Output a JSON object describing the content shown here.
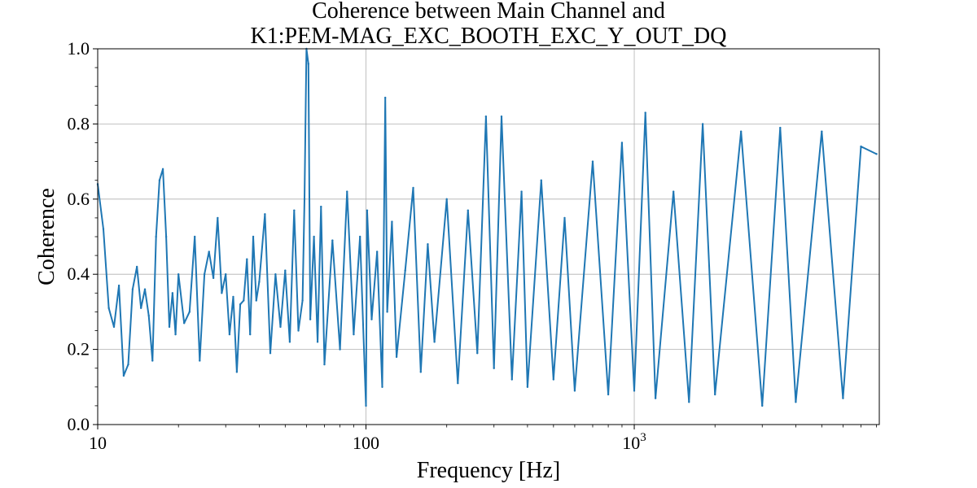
{
  "chart_data": {
    "type": "line",
    "title_line1": "Coherence between Main Channel and",
    "title_line2": "K1:PEM-MAG_EXC_BOOTH_EXC_Y_OUT_DQ",
    "xlabel": "Frequency [Hz]",
    "ylabel": "Coherence",
    "x_scale": "log",
    "xlim": [
      10,
      8192
    ],
    "ylim": [
      0.0,
      1.0
    ],
    "grid": true,
    "line_color": "#1f77b4",
    "x_ticks": [
      {
        "value": 10,
        "base": "10",
        "sup": ""
      },
      {
        "value": 100,
        "base": "100",
        "sup": ""
      },
      {
        "value": 1000,
        "base": "10",
        "sup": "3"
      }
    ],
    "y_ticks": [
      {
        "value": 0.0,
        "label": "0.0"
      },
      {
        "value": 0.2,
        "label": "0.2"
      },
      {
        "value": 0.4,
        "label": "0.4"
      },
      {
        "value": 0.6,
        "label": "0.6"
      },
      {
        "value": 0.8,
        "label": "0.8"
      },
      {
        "value": 1.0,
        "label": "1.0"
      }
    ],
    "series": [
      {
        "x": [
          10,
          10.5,
          11,
          11.5,
          12,
          12.5,
          13,
          13.5,
          14,
          14.5,
          15,
          15.5,
          16,
          16.5,
          17,
          17.5,
          18,
          18.5,
          19,
          19.5,
          20,
          21,
          22,
          23,
          24,
          25,
          26,
          27,
          28,
          29,
          30,
          31,
          32,
          33,
          34,
          35,
          36,
          37,
          38,
          39,
          40,
          42,
          44,
          46,
          48,
          50,
          52,
          54,
          56,
          58,
          59,
          60,
          61,
          62,
          64,
          66,
          68,
          70,
          75,
          80,
          85,
          90,
          95,
          100,
          101,
          105,
          110,
          115,
          118,
          120,
          125,
          130,
          140,
          150,
          160,
          170,
          180,
          200,
          220,
          240,
          260,
          280,
          300,
          320,
          350,
          380,
          400,
          450,
          500,
          550,
          600,
          700,
          800,
          900,
          1000,
          1100,
          1200,
          1400,
          1600,
          1800,
          2000,
          2500,
          3000,
          3500,
          4000,
          5000,
          6000,
          7000,
          8000
        ],
        "y": [
          0.64,
          0.52,
          0.31,
          0.26,
          0.37,
          0.13,
          0.16,
          0.36,
          0.42,
          0.31,
          0.36,
          0.29,
          0.17,
          0.5,
          0.65,
          0.68,
          0.5,
          0.26,
          0.35,
          0.24,
          0.4,
          0.27,
          0.3,
          0.5,
          0.17,
          0.4,
          0.46,
          0.39,
          0.55,
          0.35,
          0.4,
          0.24,
          0.34,
          0.14,
          0.32,
          0.33,
          0.44,
          0.24,
          0.5,
          0.33,
          0.38,
          0.56,
          0.19,
          0.4,
          0.26,
          0.41,
          0.22,
          0.57,
          0.25,
          0.33,
          0.6,
          1.0,
          0.96,
          0.28,
          0.5,
          0.22,
          0.58,
          0.16,
          0.49,
          0.2,
          0.62,
          0.24,
          0.5,
          0.05,
          0.57,
          0.28,
          0.46,
          0.1,
          0.87,
          0.3,
          0.54,
          0.18,
          0.41,
          0.63,
          0.14,
          0.48,
          0.22,
          0.6,
          0.11,
          0.57,
          0.19,
          0.82,
          0.15,
          0.82,
          0.12,
          0.62,
          0.1,
          0.65,
          0.12,
          0.55,
          0.09,
          0.7,
          0.08,
          0.75,
          0.09,
          0.83,
          0.07,
          0.62,
          0.06,
          0.8,
          0.08,
          0.78,
          0.05,
          0.79,
          0.06,
          0.78,
          0.07,
          0.74,
          0.72
        ]
      }
    ]
  }
}
